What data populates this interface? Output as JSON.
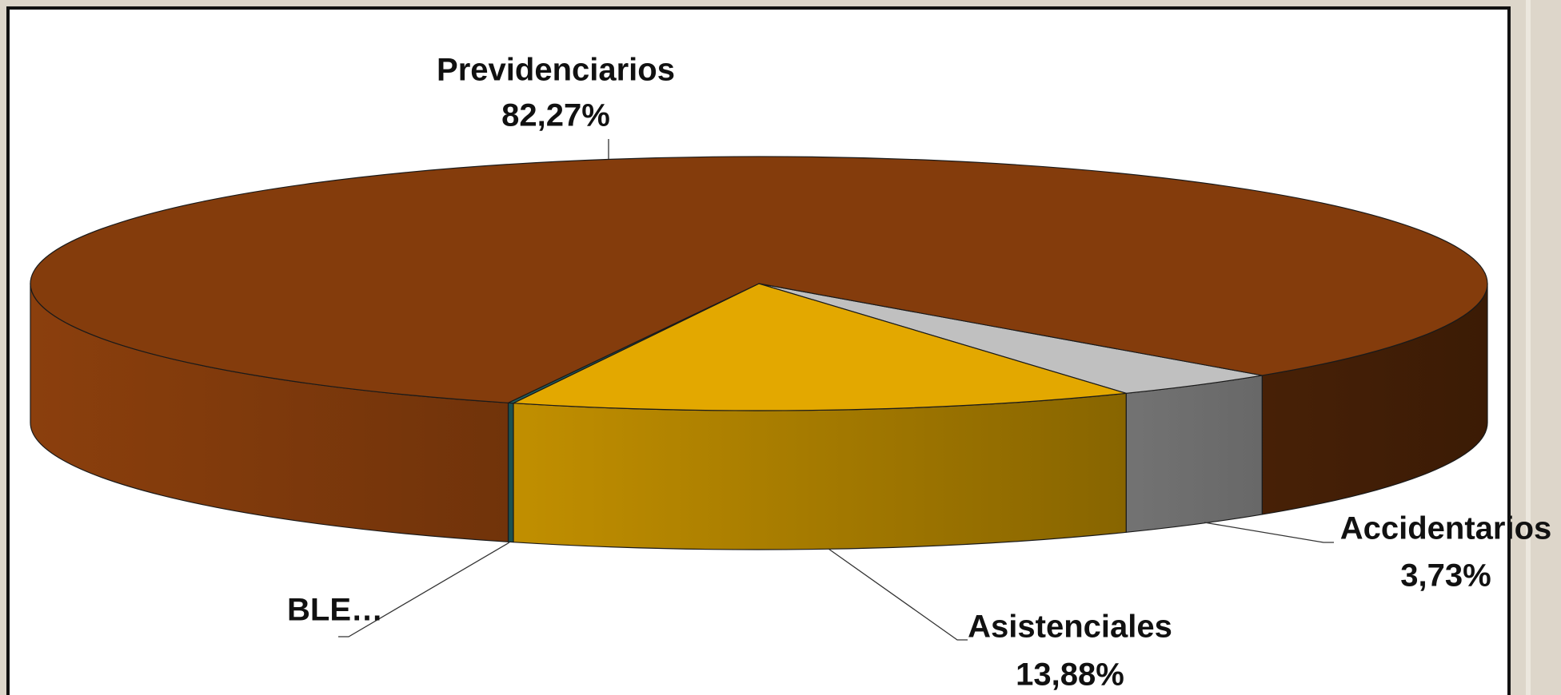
{
  "chart_data": {
    "type": "pie",
    "categories": [
      "Accidentarios",
      "Asistenciales",
      "BLE…",
      "Previdenciarios"
    ],
    "values": [
      3.73,
      13.88,
      0.12,
      82.27
    ],
    "value_labels": [
      "3,73%",
      "13,88%",
      null,
      "82,27%"
    ],
    "colors": [
      "#c0c0c0",
      "#e3a800",
      "#1f5f5f",
      "#843c0c"
    ]
  }
}
